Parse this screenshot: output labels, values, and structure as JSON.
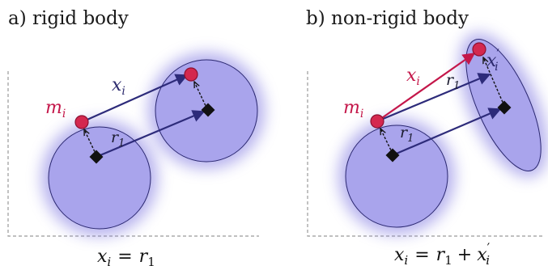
{
  "panel_a": {
    "title": "a) rigid body",
    "mass_label_base": "m",
    "mass_label_sub": "i",
    "x_label_base": "x",
    "x_label_sub": "i",
    "r_label_base": "r",
    "r_label_sub": "1",
    "equation": {
      "lhs_base": "x",
      "lhs_sub": "i",
      "equals": "=",
      "rhs_base": "r",
      "rhs_sub": "1"
    }
  },
  "panel_b": {
    "title": "b) non-rigid body",
    "mass_label_base": "m",
    "mass_label_sub": "i",
    "x_label_base": "x",
    "x_label_sub": "i",
    "xprime_label_base": "x",
    "xprime_label_sub": "i",
    "xprime_mark": "′",
    "r_label_upper_base": "r",
    "r_label_upper_sub": "1",
    "r_label_lower_base": "r",
    "r_label_lower_sub": "1",
    "equation": {
      "lhs_base": "x",
      "lhs_sub": "i",
      "equals": "=",
      "r_base": "r",
      "r_sub": "1",
      "plus": "+",
      "xp_base": "x",
      "xp_sub": "i",
      "xp_mark": "′"
    }
  },
  "colors": {
    "body_fill": "#a9a4ec",
    "body_stroke": "#2b2870",
    "glow": "#7a72e0",
    "arrow_dark": "#2d2b7a",
    "arrow_red": "#c4174a",
    "mass_fill": "#d4284f",
    "anchor": "#111111",
    "axis": "#9a9a9a"
  }
}
